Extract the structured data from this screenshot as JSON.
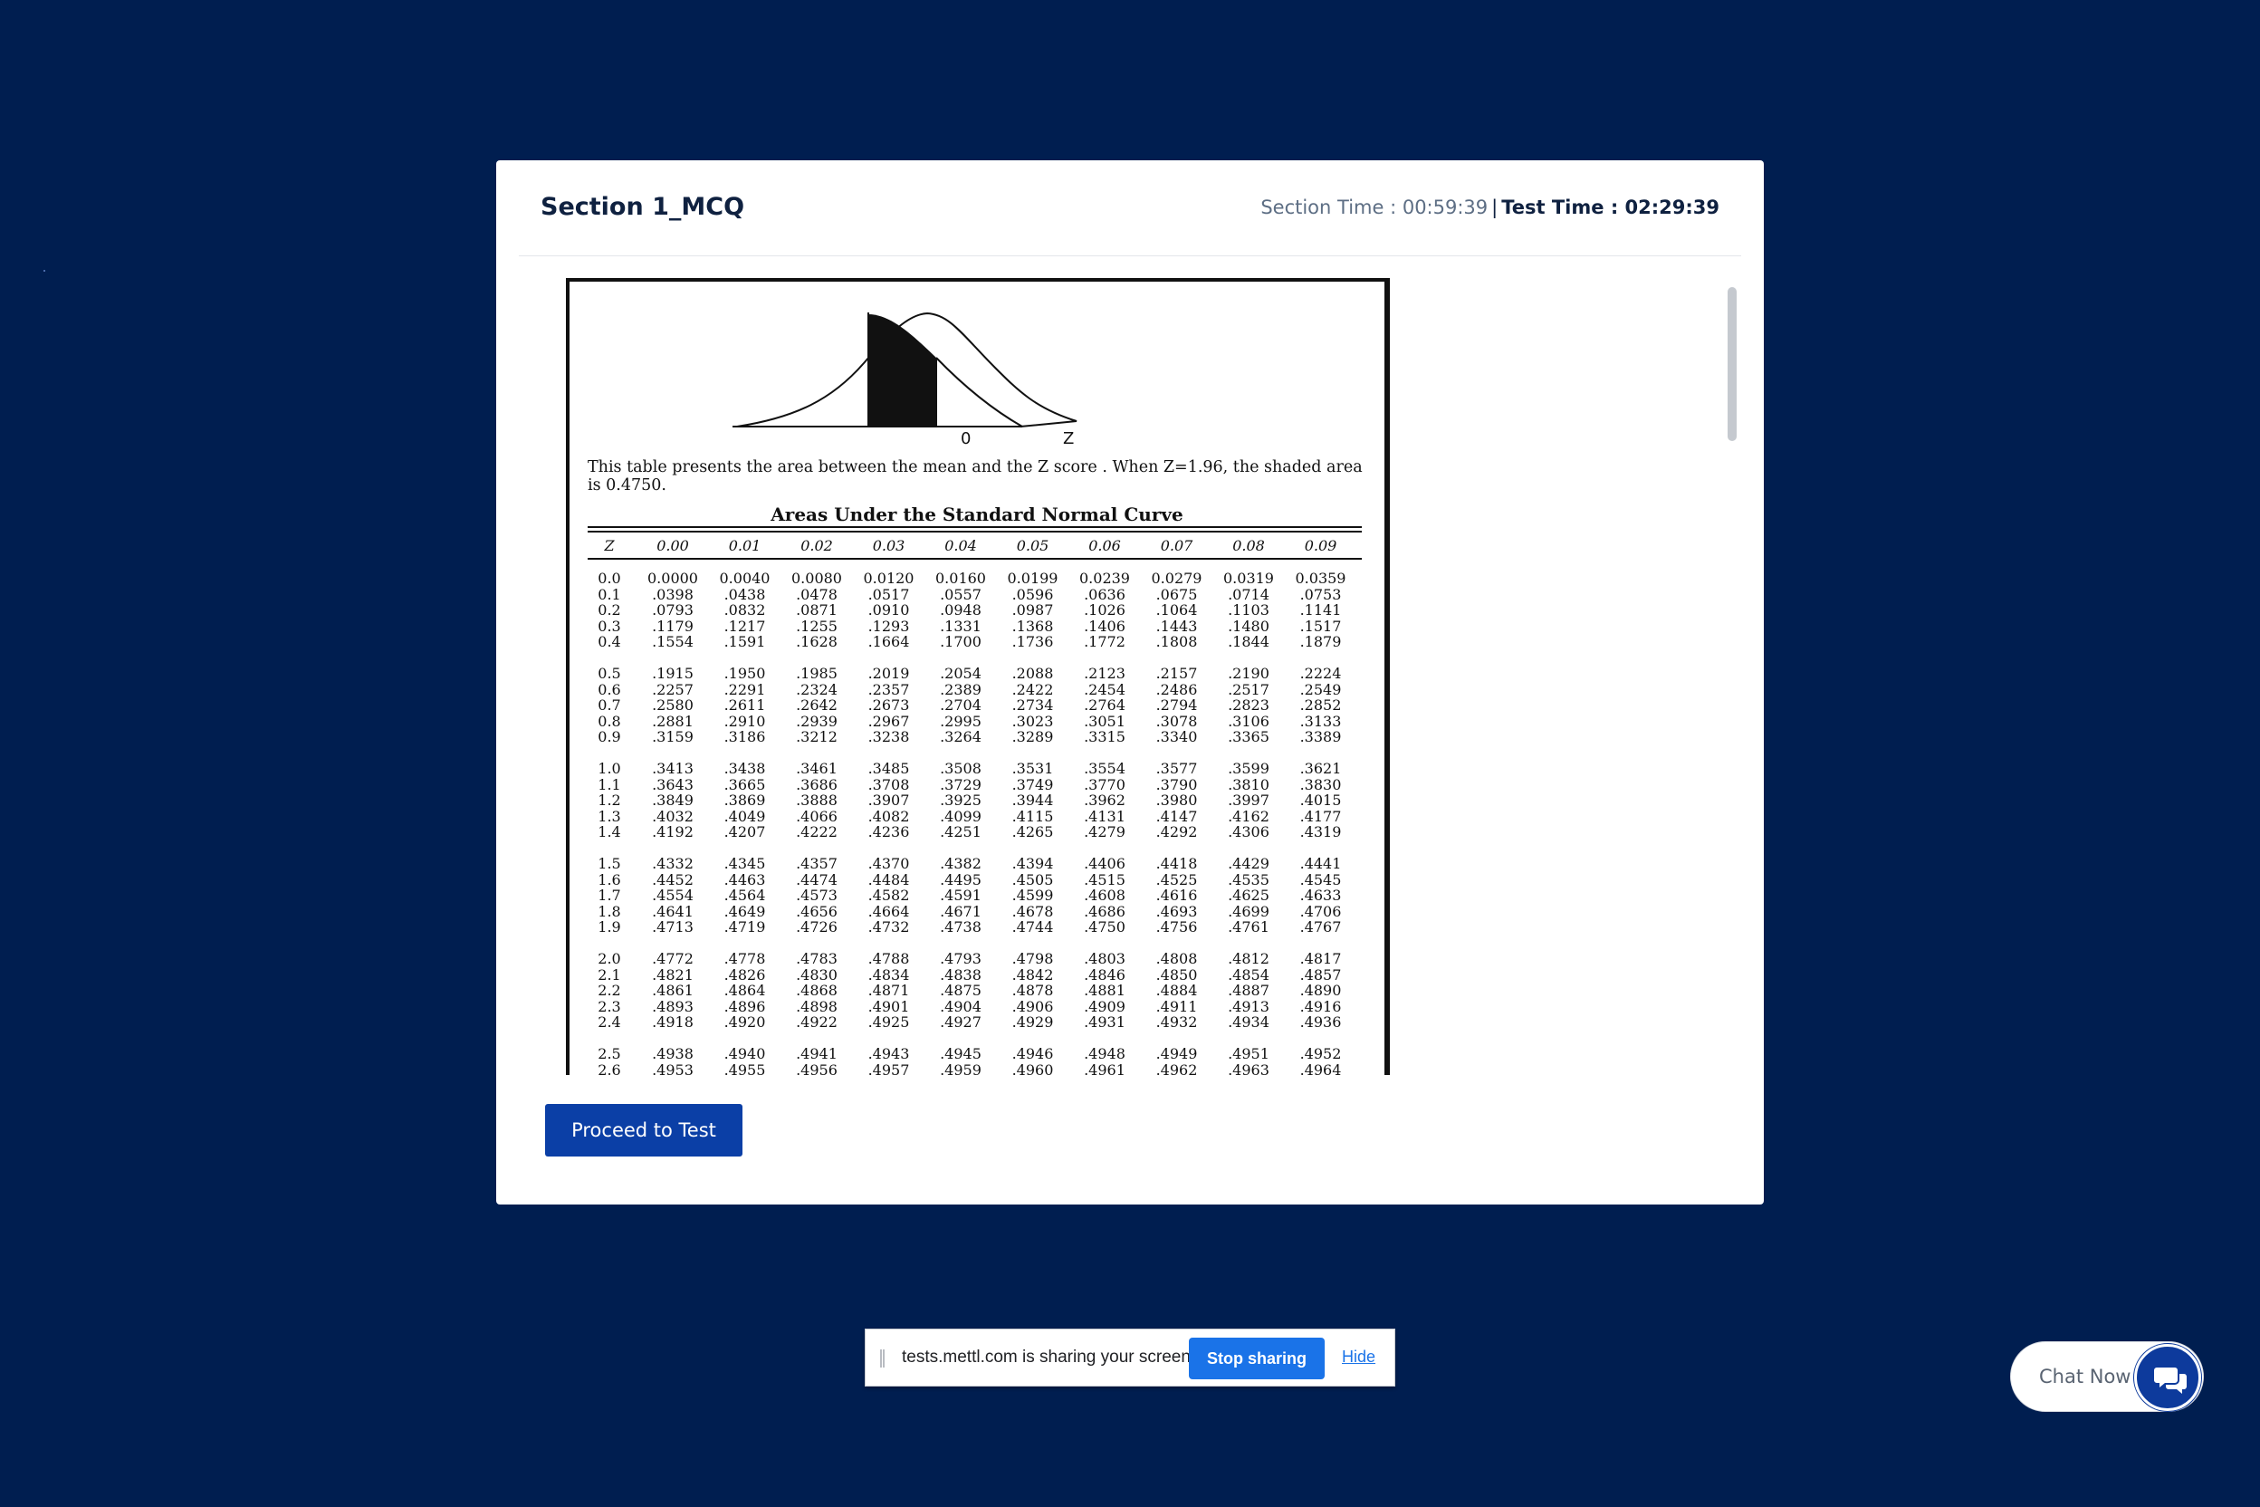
{
  "header": {
    "section_title": "Section 1_MCQ",
    "section_time_label": "Section Time : 00:59:39",
    "separator": "|",
    "test_time_label": "Test Time : 02:29:39"
  },
  "ztable": {
    "curve_label_zero": "0",
    "curve_label_z": "Z",
    "description": "This table presents the area between the mean and the Z score . When Z=1.96, the shaded area is 0.4750.",
    "title": "Areas Under the Standard Normal Curve",
    "z_header": "Z",
    "columns": [
      "0.00",
      "0.01",
      "0.02",
      "0.03",
      "0.04",
      "0.05",
      "0.06",
      "0.07",
      "0.08",
      "0.09"
    ],
    "rows": [
      {
        "z": "0.0",
        "v": [
          "0.0000",
          "0.0040",
          "0.0080",
          "0.0120",
          "0.0160",
          "0.0199",
          "0.0239",
          "0.0279",
          "0.0319",
          "0.0359"
        ]
      },
      {
        "z": "0.1",
        "v": [
          ".0398",
          ".0438",
          ".0478",
          ".0517",
          ".0557",
          ".0596",
          ".0636",
          ".0675",
          ".0714",
          ".0753"
        ]
      },
      {
        "z": "0.2",
        "v": [
          ".0793",
          ".0832",
          ".0871",
          ".0910",
          ".0948",
          ".0987",
          ".1026",
          ".1064",
          ".1103",
          ".1141"
        ]
      },
      {
        "z": "0.3",
        "v": [
          ".1179",
          ".1217",
          ".1255",
          ".1293",
          ".1331",
          ".1368",
          ".1406",
          ".1443",
          ".1480",
          ".1517"
        ]
      },
      {
        "z": "0.4",
        "v": [
          ".1554",
          ".1591",
          ".1628",
          ".1664",
          ".1700",
          ".1736",
          ".1772",
          ".1808",
          ".1844",
          ".1879"
        ]
      },
      {
        "z": "0.5",
        "v": [
          ".1915",
          ".1950",
          ".1985",
          ".2019",
          ".2054",
          ".2088",
          ".2123",
          ".2157",
          ".2190",
          ".2224"
        ]
      },
      {
        "z": "0.6",
        "v": [
          ".2257",
          ".2291",
          ".2324",
          ".2357",
          ".2389",
          ".2422",
          ".2454",
          ".2486",
          ".2517",
          ".2549"
        ]
      },
      {
        "z": "0.7",
        "v": [
          ".2580",
          ".2611",
          ".2642",
          ".2673",
          ".2704",
          ".2734",
          ".2764",
          ".2794",
          ".2823",
          ".2852"
        ]
      },
      {
        "z": "0.8",
        "v": [
          ".2881",
          ".2910",
          ".2939",
          ".2967",
          ".2995",
          ".3023",
          ".3051",
          ".3078",
          ".3106",
          ".3133"
        ]
      },
      {
        "z": "0.9",
        "v": [
          ".3159",
          ".3186",
          ".3212",
          ".3238",
          ".3264",
          ".3289",
          ".3315",
          ".3340",
          ".3365",
          ".3389"
        ]
      },
      {
        "z": "1.0",
        "v": [
          ".3413",
          ".3438",
          ".3461",
          ".3485",
          ".3508",
          ".3531",
          ".3554",
          ".3577",
          ".3599",
          ".3621"
        ]
      },
      {
        "z": "1.1",
        "v": [
          ".3643",
          ".3665",
          ".3686",
          ".3708",
          ".3729",
          ".3749",
          ".3770",
          ".3790",
          ".3810",
          ".3830"
        ]
      },
      {
        "z": "1.2",
        "v": [
          ".3849",
          ".3869",
          ".3888",
          ".3907",
          ".3925",
          ".3944",
          ".3962",
          ".3980",
          ".3997",
          ".4015"
        ]
      },
      {
        "z": "1.3",
        "v": [
          ".4032",
          ".4049",
          ".4066",
          ".4082",
          ".4099",
          ".4115",
          ".4131",
          ".4147",
          ".4162",
          ".4177"
        ]
      },
      {
        "z": "1.4",
        "v": [
          ".4192",
          ".4207",
          ".4222",
          ".4236",
          ".4251",
          ".4265",
          ".4279",
          ".4292",
          ".4306",
          ".4319"
        ]
      },
      {
        "z": "1.5",
        "v": [
          ".4332",
          ".4345",
          ".4357",
          ".4370",
          ".4382",
          ".4394",
          ".4406",
          ".4418",
          ".4429",
          ".4441"
        ]
      },
      {
        "z": "1.6",
        "v": [
          ".4452",
          ".4463",
          ".4474",
          ".4484",
          ".4495",
          ".4505",
          ".4515",
          ".4525",
          ".4535",
          ".4545"
        ]
      },
      {
        "z": "1.7",
        "v": [
          ".4554",
          ".4564",
          ".4573",
          ".4582",
          ".4591",
          ".4599",
          ".4608",
          ".4616",
          ".4625",
          ".4633"
        ]
      },
      {
        "z": "1.8",
        "v": [
          ".4641",
          ".4649",
          ".4656",
          ".4664",
          ".4671",
          ".4678",
          ".4686",
          ".4693",
          ".4699",
          ".4706"
        ]
      },
      {
        "z": "1.9",
        "v": [
          ".4713",
          ".4719",
          ".4726",
          ".4732",
          ".4738",
          ".4744",
          ".4750",
          ".4756",
          ".4761",
          ".4767"
        ]
      },
      {
        "z": "2.0",
        "v": [
          ".4772",
          ".4778",
          ".4783",
          ".4788",
          ".4793",
          ".4798",
          ".4803",
          ".4808",
          ".4812",
          ".4817"
        ]
      },
      {
        "z": "2.1",
        "v": [
          ".4821",
          ".4826",
          ".4830",
          ".4834",
          ".4838",
          ".4842",
          ".4846",
          ".4850",
          ".4854",
          ".4857"
        ]
      },
      {
        "z": "2.2",
        "v": [
          ".4861",
          ".4864",
          ".4868",
          ".4871",
          ".4875",
          ".4878",
          ".4881",
          ".4884",
          ".4887",
          ".4890"
        ]
      },
      {
        "z": "2.3",
        "v": [
          ".4893",
          ".4896",
          ".4898",
          ".4901",
          ".4904",
          ".4906",
          ".4909",
          ".4911",
          ".4913",
          ".4916"
        ]
      },
      {
        "z": "2.4",
        "v": [
          ".4918",
          ".4920",
          ".4922",
          ".4925",
          ".4927",
          ".4929",
          ".4931",
          ".4932",
          ".4934",
          ".4936"
        ]
      },
      {
        "z": "2.5",
        "v": [
          ".4938",
          ".4940",
          ".4941",
          ".4943",
          ".4945",
          ".4946",
          ".4948",
          ".4949",
          ".4951",
          ".4952"
        ]
      },
      {
        "z": "2.6",
        "v": [
          ".4953",
          ".4955",
          ".4956",
          ".4957",
          ".4959",
          ".4960",
          ".4961",
          ".4962",
          ".4963",
          ".4964"
        ]
      }
    ]
  },
  "actions": {
    "proceed_label": "Proceed to Test"
  },
  "share_bar": {
    "message": "tests.mettl.com is sharing your screen.",
    "stop_label": "Stop sharing",
    "hide_label": "Hide"
  },
  "chat": {
    "label": "Chat Now",
    "icon": "chat-bubbles-icon"
  },
  "colors": {
    "page_background": "#001e50",
    "primary_button": "#0b3fa6",
    "share_button": "#1a73e8"
  }
}
